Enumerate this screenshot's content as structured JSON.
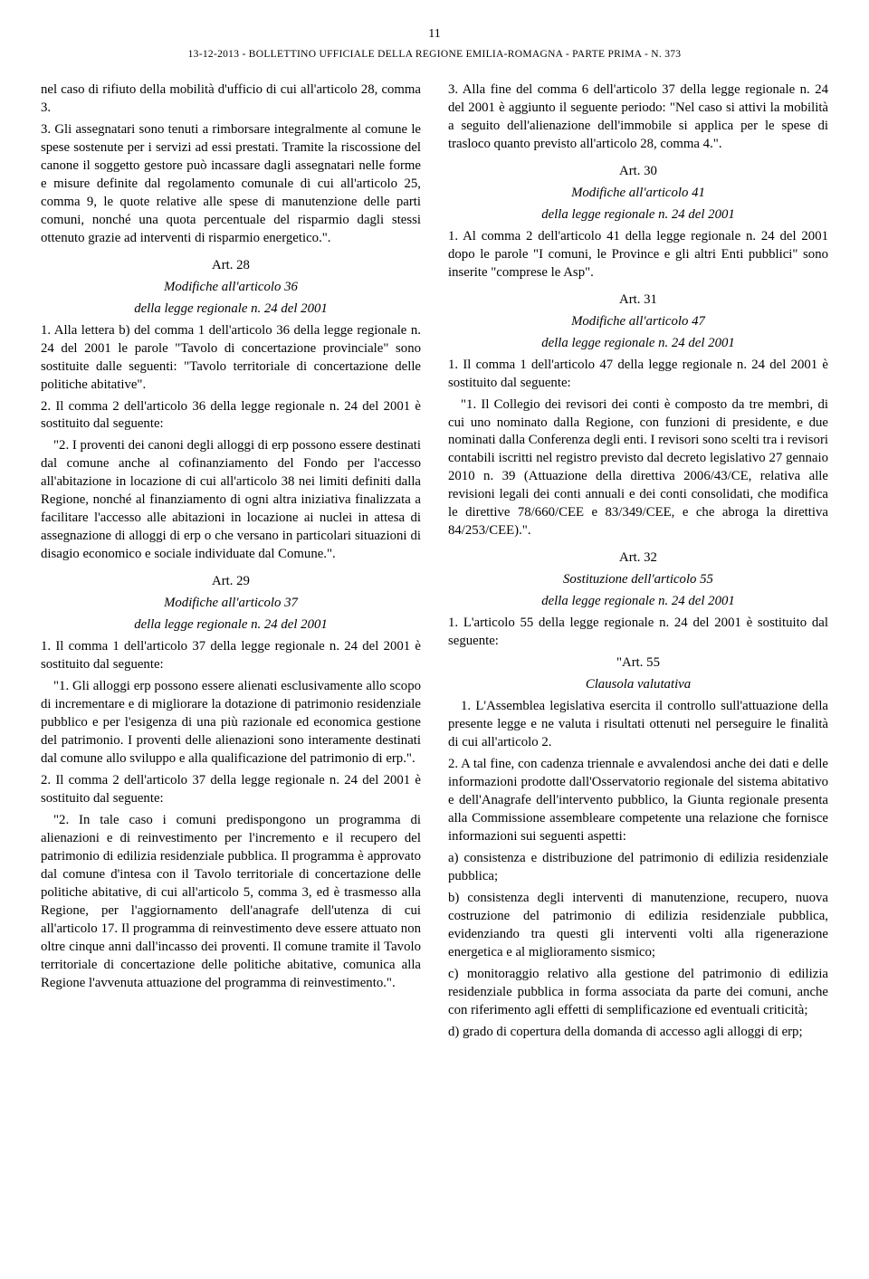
{
  "page_number": "11",
  "header": "13-12-2013 - BOLLETTINO UFFICIALE DELLA REGIONE EMILIA-ROMAGNA - PARTE PRIMA - N. 373",
  "left": {
    "p1": "nel caso di rifiuto della mobilità d'ufficio di cui all'articolo 28, comma 3.",
    "p2": "3.  Gli assegnatari sono tenuti a rimborsare integralmente al comune le spese sostenute per i servizi ad essi prestati. Tramite la riscossione del canone il soggetto gestore può incassare dagli assegnatari nelle forme e misure definite dal regolamento comunale di cui all'articolo 25, comma 9, le quote relative alle spese di manutenzione delle parti comuni, nonché una quota percentuale del risparmio dagli stessi ottenuto grazie ad interventi di risparmio energetico.\".",
    "art28_title": "Art. 28",
    "art28_sub1": "Modifiche all'articolo 36",
    "art28_sub2": "della legge regionale n. 24 del 2001",
    "art28_p1": "1.  Alla lettera b) del comma 1 dell'articolo 36 della legge regionale n. 24 del 2001 le parole \"Tavolo di concertazione provinciale\" sono sostituite dalle seguenti: \"Tavolo territoriale di concertazione delle politiche abitative\".",
    "art28_p2": "2.  Il comma 2 dell'articolo 36 della legge regionale n. 24 del 2001 è sostituito dal seguente:",
    "art28_p3": "\"2.  I proventi dei canoni degli alloggi di erp possono essere destinati dal comune anche al cofinanziamento del Fondo per l'accesso all'abitazione in locazione di cui all'articolo 38 nei limiti definiti dalla Regione, nonché al finanziamento di ogni altra iniziativa finalizzata a facilitare l'accesso alle abitazioni in locazione ai nuclei in attesa di assegnazione di alloggi di erp o che versano in particolari situazioni di disagio economico e sociale individuate dal Comune.\".",
    "art29_title": "Art. 29",
    "art29_sub1": "Modifiche all'articolo 37",
    "art29_sub2": "della legge regionale n. 24 del 2001",
    "art29_p1": "1.  Il comma 1 dell'articolo 37 della legge regionale n. 24 del 2001 è sostituito dal seguente:",
    "art29_p2": "\"1.  Gli alloggi erp possono essere alienati esclusivamente allo scopo di incrementare e di migliorare la dotazione di patrimonio residenziale pubblico e per l'esigenza di una più razionale ed economica gestione del patrimonio. I proventi delle alienazioni sono interamente destinati dal comune allo sviluppo e alla qualificazione del patrimonio di erp.\".",
    "art29_p3": "2.  Il comma 2 dell'articolo 37 della legge regionale n. 24 del 2001 è sostituito dal seguente:",
    "art29_p4": "\"2.  In tale caso i comuni predispongono un programma di alienazioni e di reinvestimento per l'incremento e il recupero del patrimonio di edilizia residenziale pubblica. Il programma è approvato dal comune d'intesa con il Tavolo territoriale di concertazione delle politiche abitative, di cui all'articolo 5, comma 3, ed è trasmesso alla Regione, per l'aggiornamento dell'anagrafe dell'utenza di cui all'articolo 17. Il programma di reinvestimento deve essere attuato non oltre cinque anni dall'incasso dei proventi. Il comune tramite il Tavolo territoriale di concertazione delle politiche abitative, comunica alla Regione l'avvenuta attuazione del programma di reinvestimento.\"."
  },
  "right": {
    "p1": "3.  Alla fine del comma 6 dell'articolo 37 della legge regionale n. 24 del 2001 è aggiunto il seguente periodo: \"Nel caso si attivi la mobilità a seguito dell'alienazione dell'immobile si applica per le spese di trasloco quanto previsto all'articolo 28, comma 4.\".",
    "art30_title": "Art. 30",
    "art30_sub1": "Modifiche all'articolo 41",
    "art30_sub2": "della legge regionale n. 24 del 2001",
    "art30_p1": "1.  Al comma 2 dell'articolo 41 della legge regionale n. 24 del 2001 dopo le parole \"I comuni, le Province e gli altri Enti pubblici\" sono inserite \"comprese le Asp\".",
    "art31_title": "Art. 31",
    "art31_sub1": "Modifiche all'articolo 47",
    "art31_sub2": "della legge regionale n. 24 del 2001",
    "art31_p1": "1.  Il comma 1 dell'articolo 47 della legge regionale n. 24 del 2001 è sostituito dal seguente:",
    "art31_p2": "\"1.  Il Collegio dei revisori dei conti è composto da tre membri, di cui uno nominato dalla Regione, con funzioni di presidente, e due nominati dalla Conferenza degli enti. I revisori sono scelti tra i revisori contabili iscritti nel registro previsto dal decreto legislativo 27 gennaio 2010 n. 39 (Attuazione della direttiva 2006/43/CE, relativa alle revisioni legali dei conti annuali e dei conti consolidati, che modifica le direttive 78/660/CEE e 83/349/CEE, e che abroga la direttiva 84/253/CEE).\".",
    "art32_title": "Art. 32",
    "art32_sub1": "Sostituzione dell'articolo 55",
    "art32_sub2": "della legge regionale n. 24 del 2001",
    "art32_p1": "1.  L'articolo 55 della legge regionale n. 24 del 2001 è sostituito dal seguente:",
    "art32_q_title": "\"Art. 55",
    "art32_q_sub": "Clausola valutativa",
    "art32_p2": "1.  L'Assemblea legislativa esercita il controllo sull'attuazione della presente legge e ne valuta i risultati ottenuti nel perseguire le finalità di cui all'articolo 2.",
    "art32_p3": "2.  A tal fine, con cadenza triennale e avvalendosi anche dei dati e delle informazioni prodotte dall'Osservatorio regionale del sistema abitativo e dell'Anagrafe dell'intervento pubblico, la Giunta regionale presenta alla Commissione assembleare competente una relazione che fornisce informazioni sui seguenti aspetti:",
    "art32_a": "a)  consistenza e distribuzione del patrimonio di edilizia residenziale pubblica;",
    "art32_b": "b)  consistenza degli interventi di manutenzione, recupero, nuova costruzione del patrimonio di edilizia residenziale pubblica, evidenziando tra questi gli interventi volti alla rigenerazione energetica e al miglioramento sismico;",
    "art32_c": "c)  monitoraggio relativo alla gestione del patrimonio di edilizia residenziale pubblica in forma associata da parte dei comuni, anche con riferimento agli effetti di semplificazione ed eventuali criticità;",
    "art32_d": "d)  grado di copertura della domanda di accesso agli alloggi di erp;"
  }
}
